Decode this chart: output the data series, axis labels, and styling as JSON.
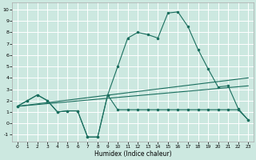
{
  "xlabel": "Humidex (Indice chaleur)",
  "bg_color": "#cce8e0",
  "line_color": "#1a6e5e",
  "grid_color": "#ffffff",
  "xlim": [
    -0.5,
    23.5
  ],
  "ylim": [
    -1.6,
    10.6
  ],
  "xticks": [
    0,
    1,
    2,
    3,
    4,
    5,
    6,
    7,
    8,
    9,
    10,
    11,
    12,
    13,
    14,
    15,
    16,
    17,
    18,
    19,
    20,
    21,
    22,
    23
  ],
  "yticks": [
    -1,
    0,
    1,
    2,
    3,
    4,
    5,
    6,
    7,
    8,
    9,
    10
  ],
  "wiggly_x": [
    0,
    1,
    2,
    3,
    4,
    5,
    6,
    7,
    8,
    9,
    10,
    11,
    12,
    13,
    14,
    15,
    16,
    17,
    18,
    19,
    20,
    21,
    22,
    23
  ],
  "wiggly_y": [
    1.5,
    2.0,
    2.5,
    2.0,
    1.0,
    1.1,
    1.1,
    -1.2,
    -1.2,
    2.5,
    1.2,
    1.2,
    1.2,
    1.2,
    1.2,
    1.2,
    1.2,
    1.2,
    1.2,
    1.2,
    1.2,
    1.2,
    1.2,
    0.3
  ],
  "upper_x": [
    0,
    1,
    2,
    3,
    4,
    5,
    6,
    7,
    8,
    9,
    10,
    11,
    12,
    13,
    14,
    15,
    16,
    17,
    18,
    19,
    20,
    21,
    22,
    23
  ],
  "upper_y": [
    1.5,
    2.0,
    2.5,
    2.0,
    1.0,
    1.1,
    1.1,
    -1.2,
    -1.2,
    2.5,
    5.0,
    7.5,
    8.0,
    7.8,
    7.5,
    9.7,
    9.8,
    8.5,
    6.5,
    4.8,
    3.2,
    3.3,
    1.3,
    0.3
  ],
  "line1_x": [
    0,
    23
  ],
  "line1_y": [
    1.5,
    3.3
  ],
  "line2_x": [
    0,
    23
  ],
  "line2_y": [
    1.5,
    4.0
  ]
}
